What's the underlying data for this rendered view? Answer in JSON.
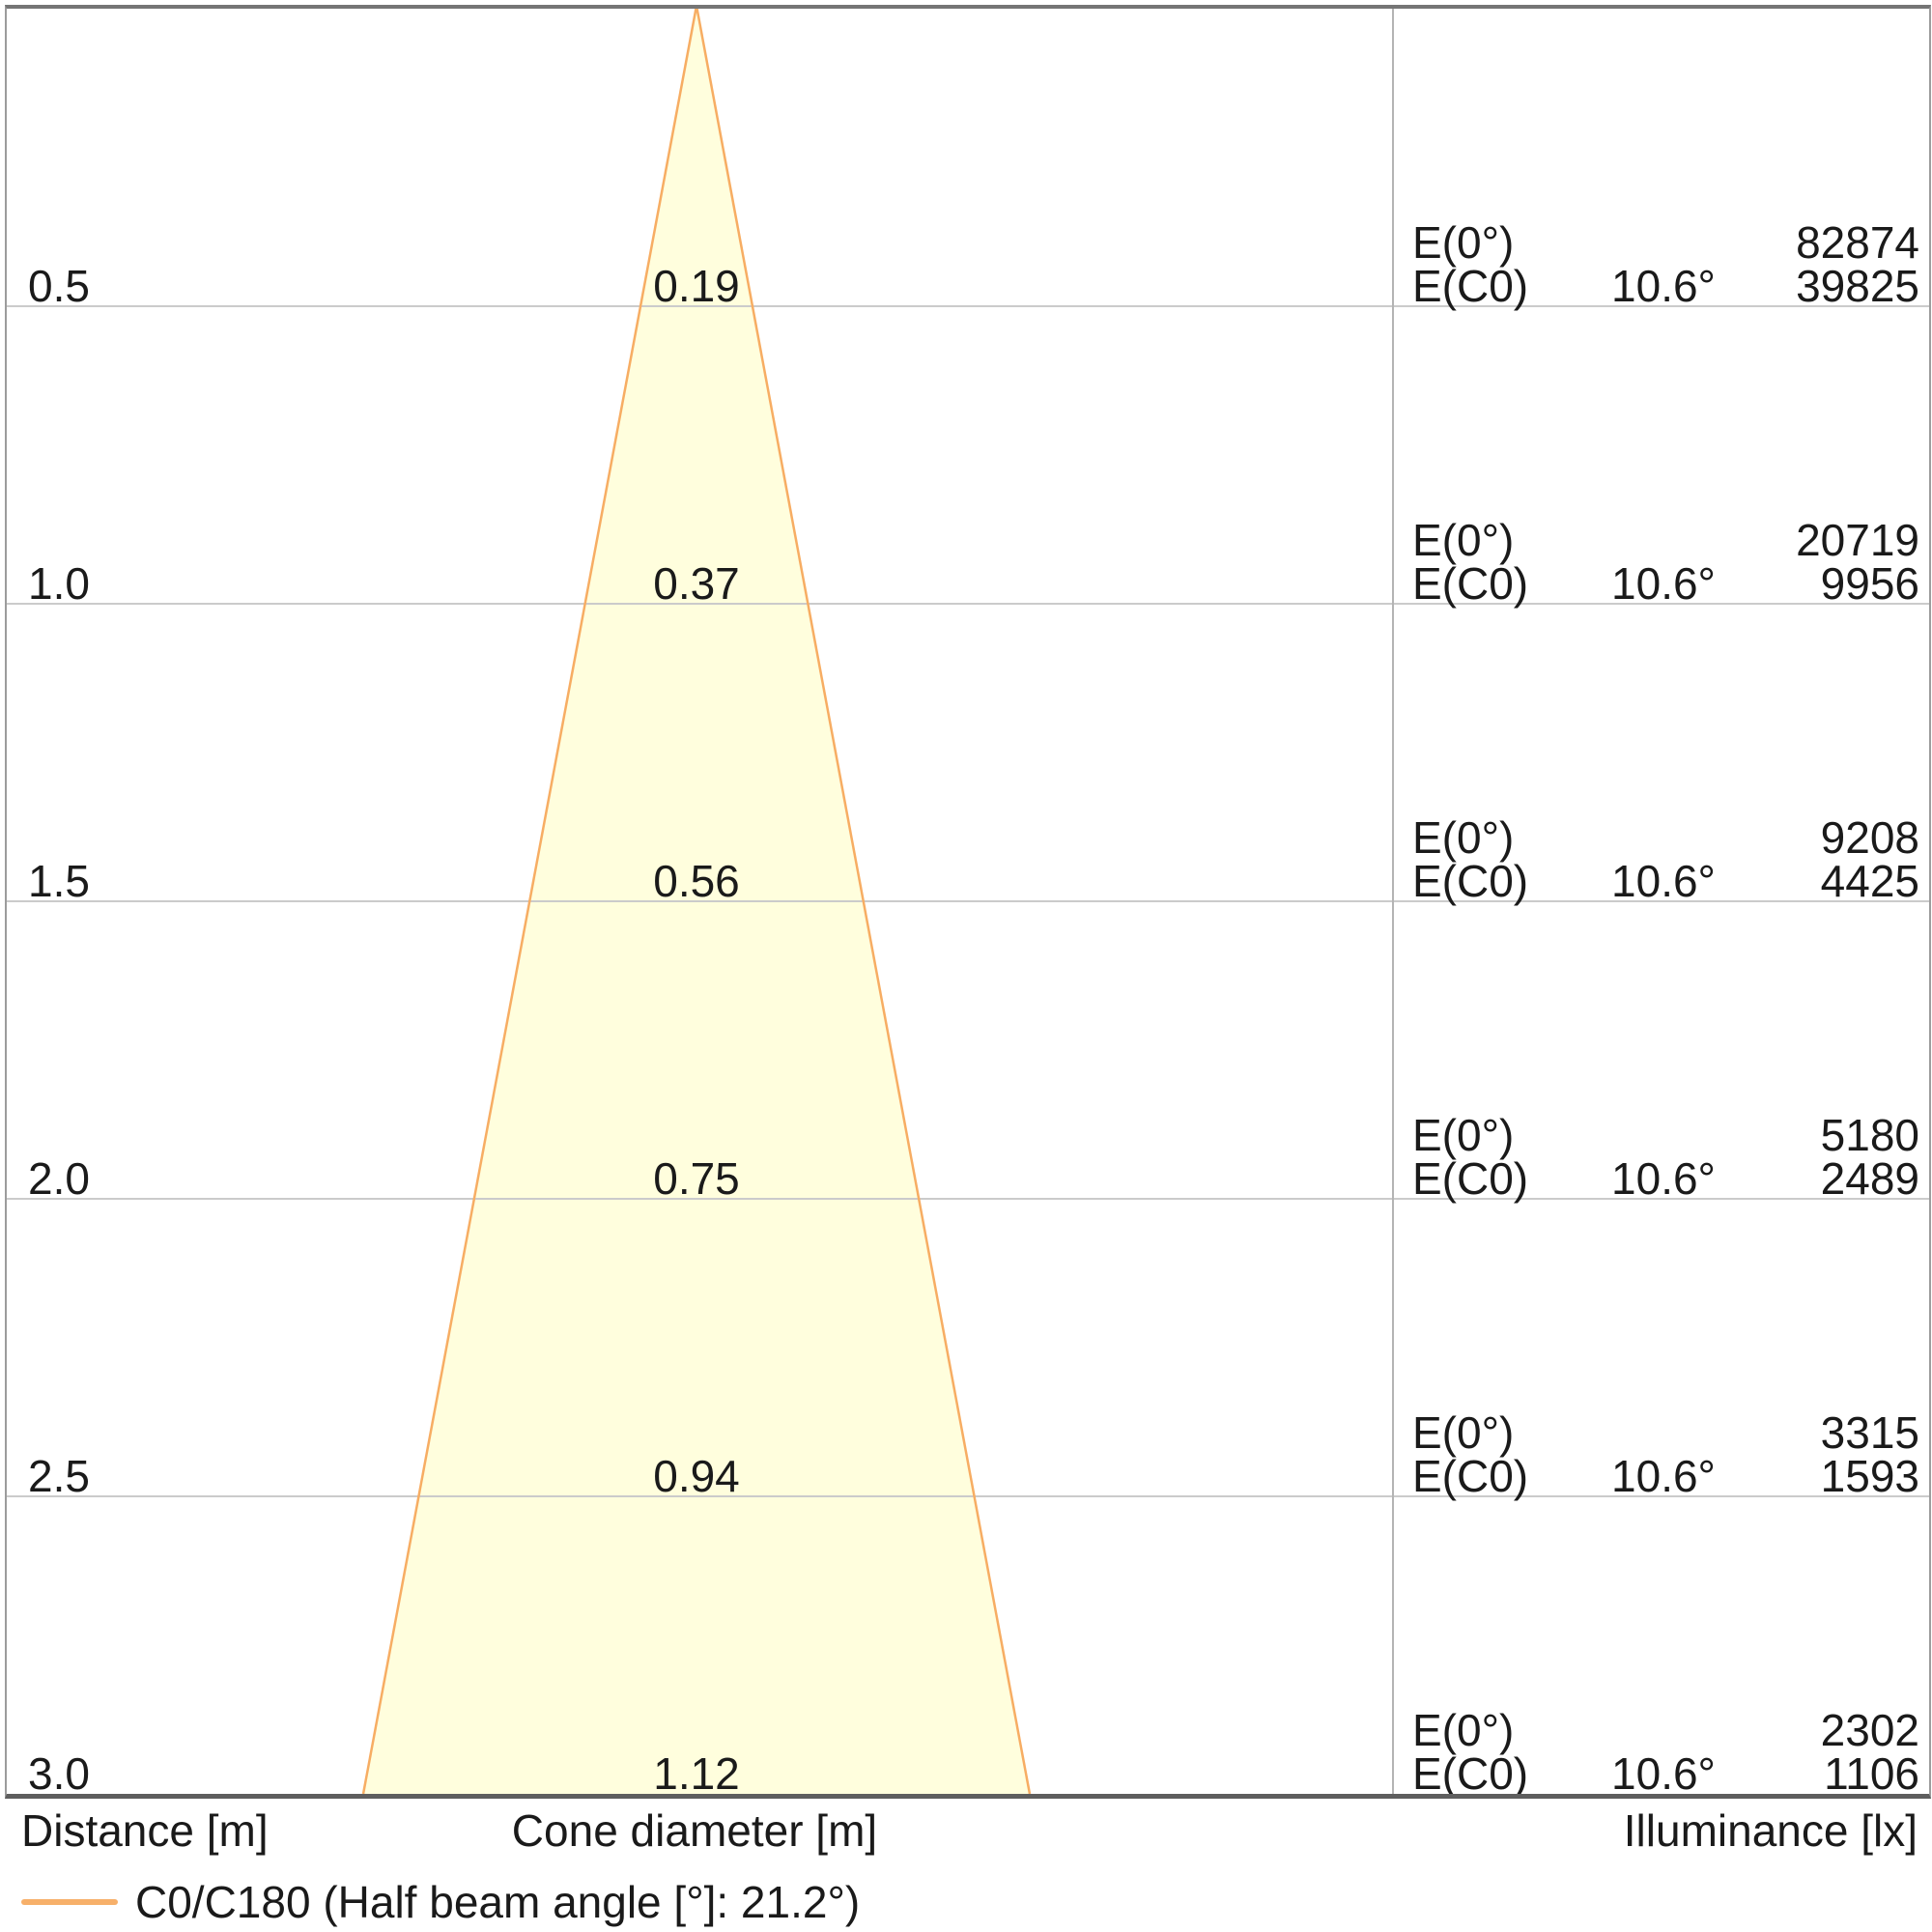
{
  "chart_data": {
    "type": "table",
    "title": "Luminaire light cone diagram",
    "footer_columns": {
      "distance": "Distance [m]",
      "cone_diameter": "Cone diameter [m]",
      "illuminance": "Illuminance [lx]"
    },
    "legend": {
      "label": "C0/C180 (Half beam angle [°]: 21.2°)",
      "swatch_color": "#f7b06a"
    },
    "half_beam_angle_deg": 21.2,
    "distance_range_m": [
      0,
      3.0
    ],
    "rows": [
      {
        "distance_m": "0.5",
        "cone_diameter_m": "0.19",
        "e0_label": "E(0°)",
        "e0_value_lx": "82874",
        "ec0_label": "E(C0)",
        "ec0_angle": "10.6°",
        "ec0_value_lx": "39825"
      },
      {
        "distance_m": "1.0",
        "cone_diameter_m": "0.37",
        "e0_label": "E(0°)",
        "e0_value_lx": "20719",
        "ec0_label": "E(C0)",
        "ec0_angle": "10.6°",
        "ec0_value_lx": "9956"
      },
      {
        "distance_m": "1.5",
        "cone_diameter_m": "0.56",
        "e0_label": "E(0°)",
        "e0_value_lx": "9208",
        "ec0_label": "E(C0)",
        "ec0_angle": "10.6°",
        "ec0_value_lx": "4425"
      },
      {
        "distance_m": "2.0",
        "cone_diameter_m": "0.75",
        "e0_label": "E(0°)",
        "e0_value_lx": "5180",
        "ec0_label": "E(C0)",
        "ec0_angle": "10.6°",
        "ec0_value_lx": "2489"
      },
      {
        "distance_m": "2.5",
        "cone_diameter_m": "0.94",
        "e0_label": "E(0°)",
        "e0_value_lx": "3315",
        "ec0_label": "E(C0)",
        "ec0_angle": "10.6°",
        "ec0_value_lx": "1593"
      },
      {
        "distance_m": "3.0",
        "cone_diameter_m": "1.12",
        "e0_label": "E(0°)",
        "e0_value_lx": "2302",
        "ec0_label": "E(C0)",
        "ec0_angle": "10.6°",
        "ec0_value_lx": "1106"
      }
    ],
    "cone": {
      "fill": "#fffedd",
      "stroke": "#f7ad63",
      "bottom_diameter_m": 1.12,
      "max_distance_m": 3.0
    },
    "colors": {
      "gridline": "#cbcbcb",
      "divider": "#b4b4b4",
      "text": "#1a1a1a"
    }
  }
}
